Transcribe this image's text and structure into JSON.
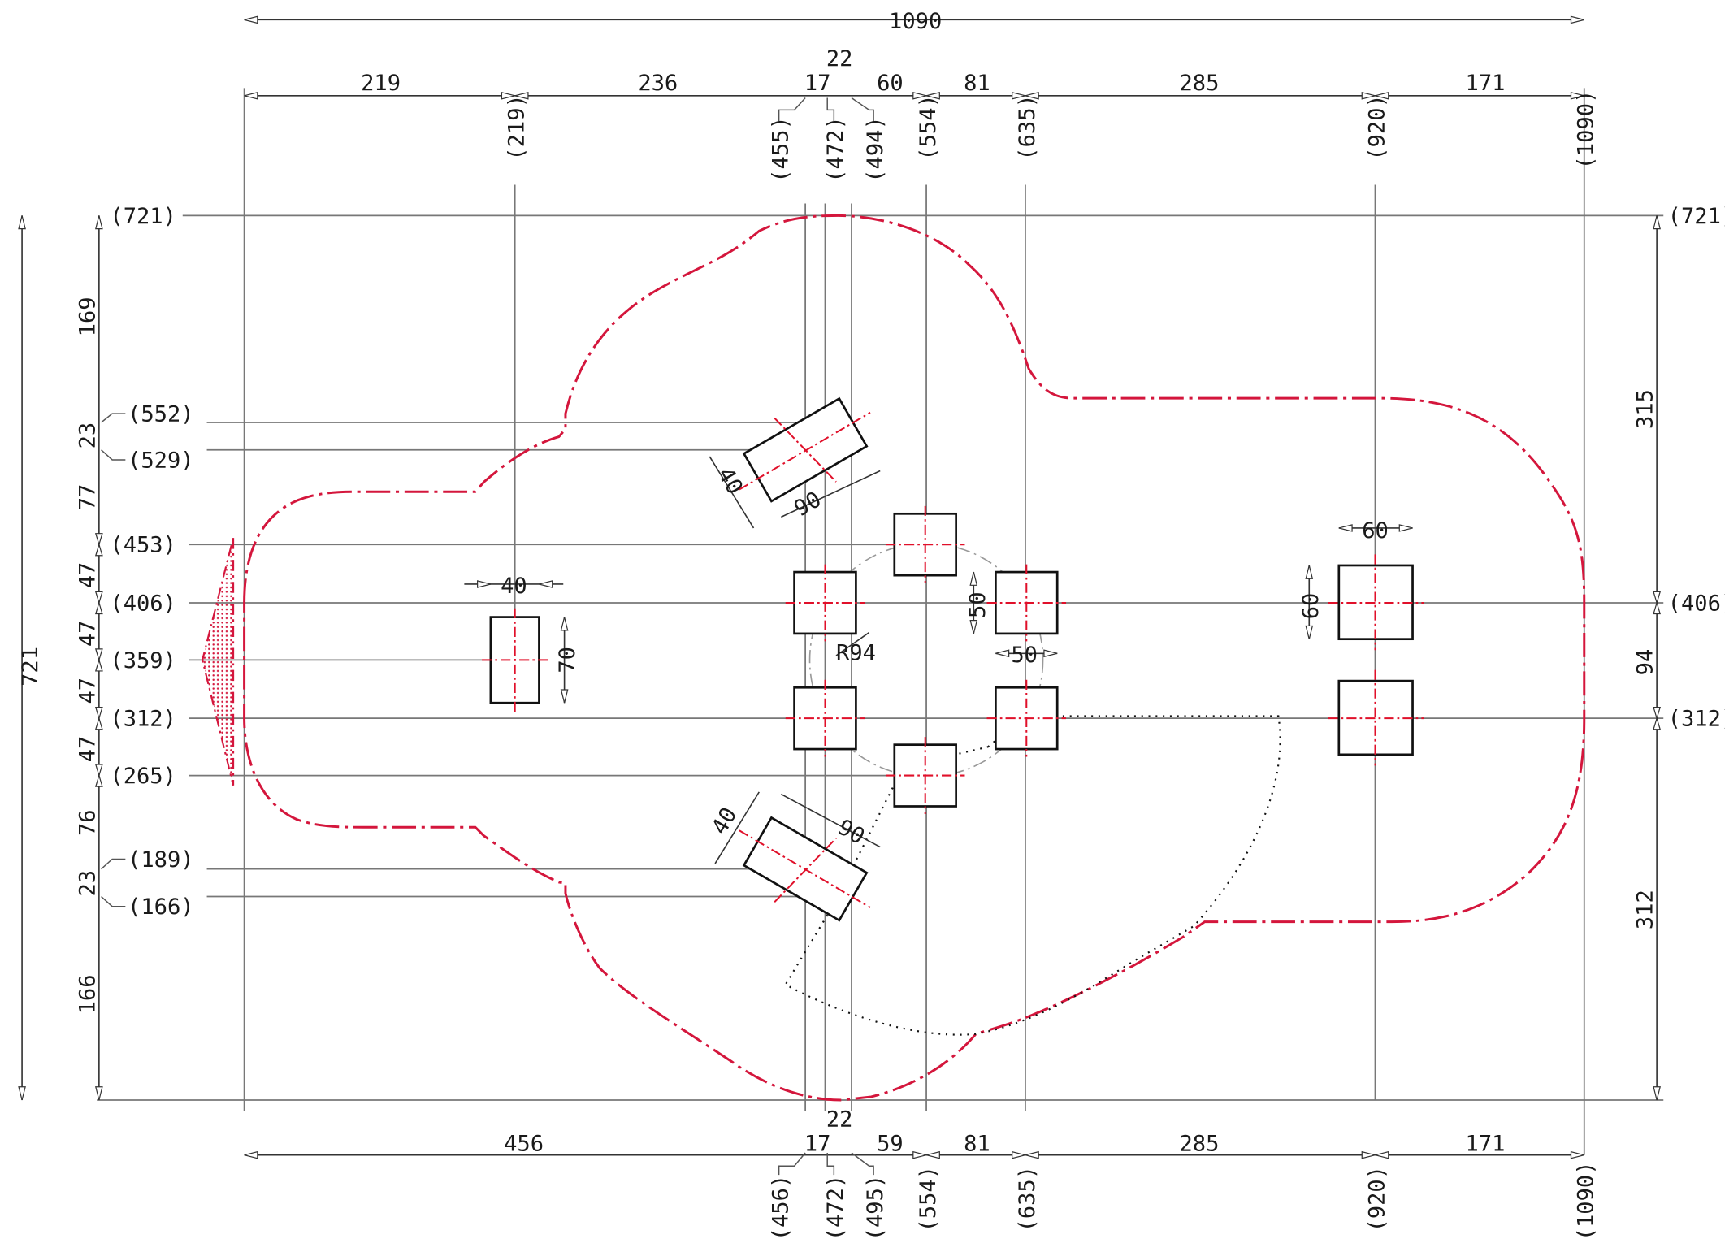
{
  "title": "",
  "colors": {
    "boundary": "#d4163c",
    "centerline": "#e0102a",
    "line": "#777777",
    "text": "#1a1a1a"
  },
  "top_dims": {
    "overall": "1090",
    "segments": [
      "219",
      "236",
      "17",
      "22",
      "60",
      "81",
      "285",
      "171"
    ]
  },
  "top_coords": [
    "(219)",
    "(455)",
    "(472)",
    "(494)",
    "(554)",
    "(635)",
    "(920)",
    "(1090)"
  ],
  "bottom_dims": {
    "segments": [
      "456",
      "17",
      "22",
      "59",
      "81",
      "285",
      "171"
    ]
  },
  "bottom_coords": [
    "(456)",
    "(472)",
    "(495)",
    "(554)",
    "(635)",
    "(920)",
    "(1090)"
  ],
  "left_overall": "721",
  "left_segments": [
    "169",
    "23",
    "77",
    "47",
    "47",
    "47",
    "47",
    "76",
    "23",
    "166"
  ],
  "left_coords": [
    "(721)",
    "(552)",
    "(529)",
    "(453)",
    "(406)",
    "(359)",
    "(312)",
    "(265)",
    "(189)",
    "(166)"
  ],
  "right_segments": [
    "315",
    "94",
    "312"
  ],
  "right_coords": [
    "(721)",
    "(406)",
    "(312)"
  ],
  "element_dims": {
    "left_post_width": "40",
    "left_post_height": "70",
    "top_beam_width": "40",
    "top_beam_length": "90",
    "bottom_beam_width": "40",
    "bottom_beam_length": "90",
    "square_height": "50",
    "square_width": "50",
    "circle_radius": "R94",
    "right_post_width": "60",
    "right_post_height": "60"
  }
}
